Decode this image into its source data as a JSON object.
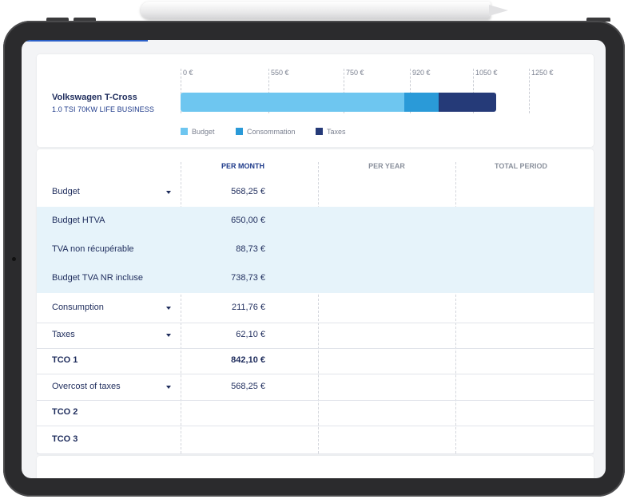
{
  "vehicle": {
    "name": "Volkswagen T-Cross",
    "version": "1.0 TSI 70KW LIFE BUSINESS"
  },
  "chart_data": {
    "type": "bar",
    "orientation": "horizontal-stacked",
    "categories": [
      "Volkswagen T-Cross"
    ],
    "series": [
      {
        "name": "Budget",
        "values": [
          568.25
        ],
        "color": "#6ec6f0"
      },
      {
        "name": "Consommation",
        "values": [
          211.76
        ],
        "color": "#2a9ad8"
      },
      {
        "name": "Taxes",
        "values": [
          62.1
        ],
        "color": "#253a78"
      }
    ],
    "x_ticks": [
      "0 €",
      "550 €",
      "750 €",
      "920 €",
      "1050 €",
      "1250 €"
    ],
    "legend_position": "bottom-left",
    "grid": true
  },
  "table": {
    "columns": [
      "PER MONTH",
      "PER YEAR",
      "TOTAL PERIOD"
    ],
    "rows": [
      {
        "label": "Budget",
        "per_month": "568,25 €",
        "dropdown": true
      },
      {
        "label": "Budget HTVA",
        "per_month": "650,00 €"
      },
      {
        "label": "TVA non récupérable",
        "per_month": "88,73 €"
      },
      {
        "label": "Budget TVA NR incluse",
        "per_month": "738,73 €"
      },
      {
        "label": "Consumption",
        "per_month": "211,76 €",
        "dropdown": true
      },
      {
        "label": "Taxes",
        "per_month": "62,10 €",
        "dropdown": true
      },
      {
        "label": "TCO 1",
        "per_month": "842,10 €"
      },
      {
        "label": "Overcost of taxes",
        "per_month": "568,25 €",
        "dropdown": true
      },
      {
        "label": "TCO 2",
        "per_month": ""
      },
      {
        "label": "TCO 3",
        "per_month": ""
      }
    ]
  },
  "colors": {
    "accent": "#2a5fc8",
    "navy_text": "#1e2c5c",
    "row_highlight": "#e6f3fa"
  }
}
